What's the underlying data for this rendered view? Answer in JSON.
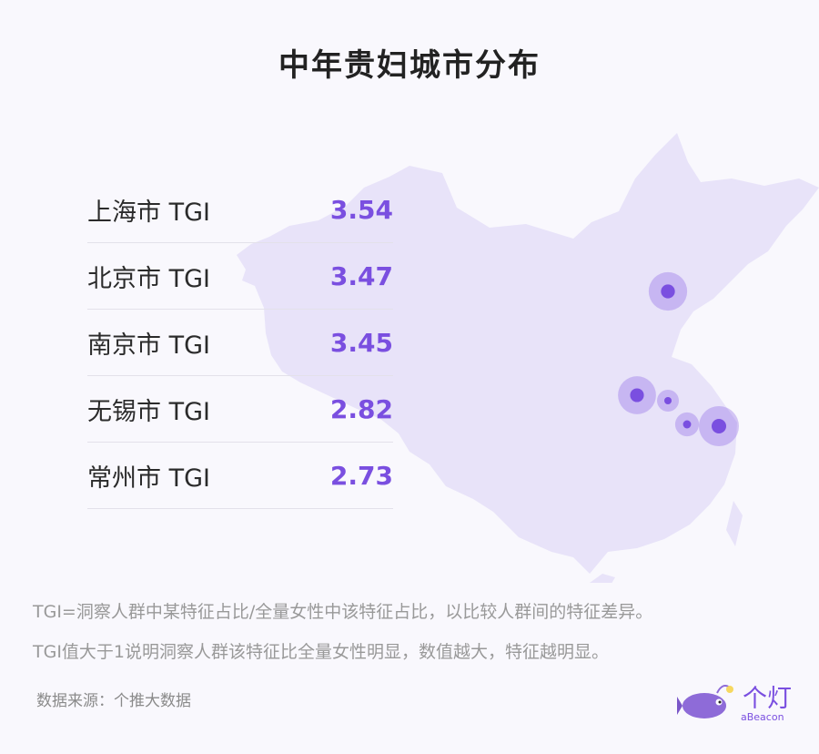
{
  "title": "中年贵妇城市分布",
  "chart_data": {
    "type": "bar",
    "categories": [
      "上海市 TGI",
      "北京市 TGI",
      "南京市 TGI",
      "无锡市 TGI",
      "常州市 TGI"
    ],
    "values": [
      "3.54",
      "3.47",
      "3.45",
      "2.82",
      "2.73"
    ]
  },
  "notes": [
    "TGI=洞察人群中某特征占比/全量女性中该特征占比，以比较人群间的特征差异。",
    "TGI值大于1说明洞察人群该特征比全量女性明显，数值越大，特征越明显。"
  ],
  "source": "数据来源：个推大数据",
  "logo": {
    "name": "个灯",
    "sub": "aBeacon"
  },
  "colors": {
    "accent": "#7a4fe0",
    "map": "#e8e3f9"
  }
}
